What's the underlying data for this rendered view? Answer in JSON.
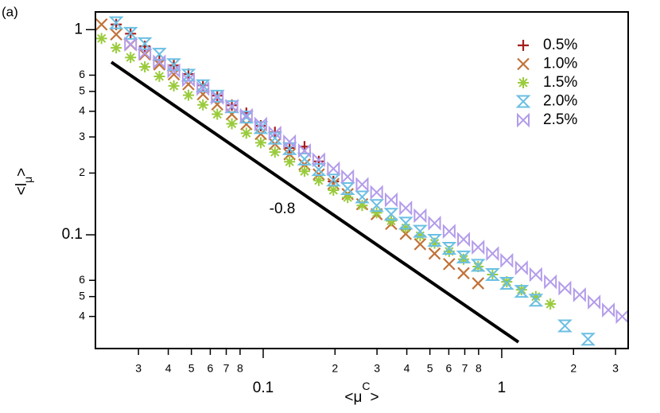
{
  "chart_data": {
    "type": "scatter",
    "panel_label": "(a)",
    "xlabel": [
      "<μ",
      "C",
      ">"
    ],
    "ylabel": [
      "<l",
      "μ",
      ">"
    ],
    "xscale": "log",
    "yscale": "log",
    "xlim": [
      0.0198,
      3.39
    ],
    "ylim": [
      0.0279,
      1.22
    ],
    "xticks": [
      {
        "value": 0.03,
        "label": "3"
      },
      {
        "value": 0.04,
        "label": "4"
      },
      {
        "value": 0.05,
        "label": "5"
      },
      {
        "value": 0.06,
        "label": "6"
      },
      {
        "value": 0.07,
        "label": "7"
      },
      {
        "value": 0.08,
        "label": "8"
      },
      0.1,
      {
        "value": 0.2,
        "label": "2"
      },
      {
        "value": 0.3,
        "label": "3"
      },
      {
        "value": 0.4,
        "label": "4"
      },
      {
        "value": 0.5,
        "label": "5"
      },
      {
        "value": 0.6,
        "label": "6"
      },
      {
        "value": 0.7,
        "label": "7"
      },
      {
        "value": 0.8,
        "label": "8"
      },
      1,
      {
        "value": 2,
        "label": "2"
      },
      {
        "value": 3,
        "label": "3"
      }
    ],
    "yticks": [
      1,
      {
        "value": 0.6,
        "label": "6"
      },
      {
        "value": 0.5,
        "label": "5"
      },
      {
        "value": 0.4,
        "label": "4"
      },
      {
        "value": 0.3,
        "label": "3"
      },
      {
        "value": 0.2,
        "label": "2"
      },
      0.1,
      {
        "value": 0.06,
        "label": "6"
      },
      {
        "value": 0.05,
        "label": "5"
      },
      {
        "value": 0.04,
        "label": "4"
      }
    ],
    "legend": "upper right",
    "reference_line": {
      "x": [
        0.0231,
        1.175
      ],
      "y": [
        0.694,
        0.03
      ],
      "label": "-0.8",
      "color": "#000000"
    },
    "series": [
      {
        "name": "0.5%",
        "marker": "plus",
        "color": "#a51d1d",
        "x": [
          0.0242,
          0.0278,
          0.0319,
          0.0367,
          0.0422,
          0.0486,
          0.0559,
          0.0642,
          0.0739,
          0.085,
          0.0977,
          0.112,
          0.129,
          0.149,
          0.171,
          0.197
        ],
        "values": [
          1.06,
          0.956,
          0.829,
          0.712,
          0.669,
          0.607,
          0.536,
          0.477,
          0.428,
          0.392,
          0.34,
          0.316,
          0.265,
          0.269,
          0.228,
          0.182
        ]
      },
      {
        "name": "1.0%",
        "marker": "x",
        "color": "#c27238",
        "x": [
          0.021,
          0.0242,
          0.0278,
          0.0319,
          0.0367,
          0.0422,
          0.0486,
          0.0559,
          0.0642,
          0.0739,
          0.085,
          0.0977,
          0.112,
          0.129,
          0.149,
          0.171,
          0.197,
          0.226,
          0.26,
          0.299,
          0.344,
          0.396,
          0.455,
          0.523,
          0.602,
          0.692,
          0.796
        ],
        "values": [
          1.06,
          0.948,
          0.847,
          0.758,
          0.677,
          0.605,
          0.542,
          0.484,
          0.432,
          0.387,
          0.346,
          0.31,
          0.277,
          0.247,
          0.22,
          0.197,
          0.177,
          0.158,
          0.141,
          0.126,
          0.113,
          0.101,
          0.09,
          0.081,
          0.072,
          0.065,
          0.058
        ]
      },
      {
        "name": "1.5%",
        "marker": "star",
        "color": "#9acb3c",
        "x": [
          0.021,
          0.0242,
          0.0278,
          0.0319,
          0.0367,
          0.0422,
          0.0486,
          0.0559,
          0.0642,
          0.0739,
          0.085,
          0.0977,
          0.112,
          0.129,
          0.149,
          0.171,
          0.197,
          0.226,
          0.26,
          0.299,
          0.344,
          0.396,
          0.455,
          0.523,
          0.602,
          0.692,
          0.796,
          0.915,
          1.05,
          1.21,
          1.39,
          1.6
        ],
        "values": [
          0.906,
          0.815,
          0.732,
          0.659,
          0.592,
          0.532,
          0.479,
          0.43,
          0.387,
          0.348,
          0.313,
          0.281,
          0.253,
          0.227,
          0.204,
          0.184,
          0.165,
          0.152,
          0.139,
          0.128,
          0.117,
          0.108,
          0.099,
          0.091,
          0.083,
          0.076,
          0.07,
          0.064,
          0.059,
          0.054,
          0.05,
          0.046
        ]
      },
      {
        "name": "2.0%",
        "marker": "hourglass",
        "color": "#6bbfe3",
        "x": [
          0.0242,
          0.0278,
          0.0319,
          0.0367,
          0.0422,
          0.0486,
          0.0559,
          0.0642,
          0.0739,
          0.085,
          0.0977,
          0.112,
          0.129,
          0.149,
          0.171,
          0.197,
          0.226,
          0.26,
          0.299,
          0.344,
          0.396,
          0.455,
          0.523,
          0.602,
          0.692,
          0.796,
          0.915,
          1.05,
          1.21,
          1.39,
          1.84,
          2.3
        ],
        "values": [
          1.08,
          0.96,
          0.854,
          0.759,
          0.675,
          0.6,
          0.533,
          0.474,
          0.421,
          0.375,
          0.333,
          0.296,
          0.263,
          0.234,
          0.208,
          0.185,
          0.168,
          0.153,
          0.139,
          0.126,
          0.114,
          0.104,
          0.094,
          0.086,
          0.078,
          0.071,
          0.064,
          0.058,
          0.053,
          0.048,
          0.036,
          0.031
        ]
      },
      {
        "name": "2.5%",
        "marker": "bowtie",
        "color": "#b39cea",
        "x": [
          0.0278,
          0.0319,
          0.0367,
          0.0422,
          0.0486,
          0.0559,
          0.0642,
          0.0739,
          0.085,
          0.0977,
          0.112,
          0.129,
          0.149,
          0.171,
          0.197,
          0.226,
          0.26,
          0.299,
          0.344,
          0.396,
          0.455,
          0.523,
          0.602,
          0.692,
          0.796,
          0.915,
          1.05,
          1.21,
          1.39,
          1.6,
          1.84,
          2.12,
          2.44,
          2.8,
          3.2
        ],
        "values": [
          0.85,
          0.769,
          0.696,
          0.63,
          0.57,
          0.516,
          0.467,
          0.423,
          0.382,
          0.346,
          0.313,
          0.284,
          0.257,
          0.232,
          0.21,
          0.192,
          0.176,
          0.161,
          0.148,
          0.135,
          0.124,
          0.114,
          0.104,
          0.095,
          0.087,
          0.081,
          0.075,
          0.069,
          0.064,
          0.059,
          0.055,
          0.051,
          0.047,
          0.043,
          0.04
        ]
      }
    ]
  }
}
